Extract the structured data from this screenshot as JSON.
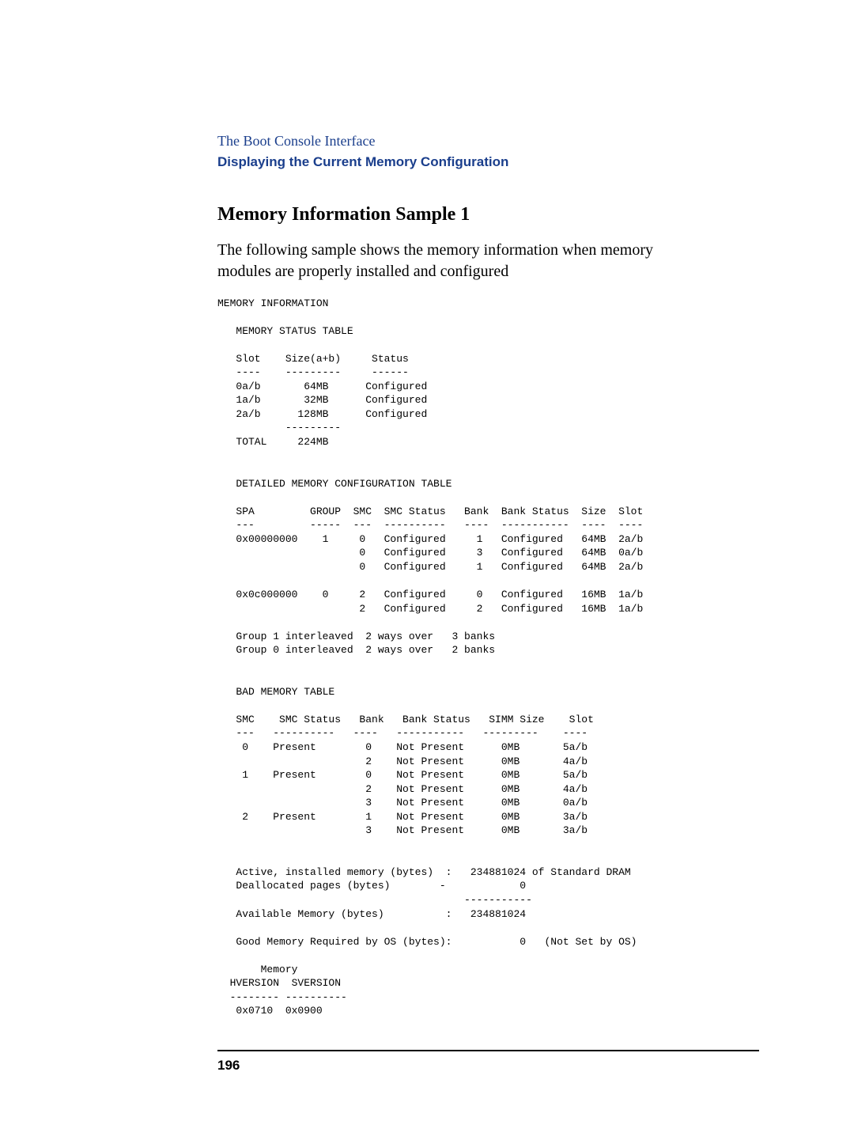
{
  "header": {
    "chapter": "The Boot Console Interface",
    "section": "Displaying the Current Memory Configuration"
  },
  "title": "Memory Information Sample 1",
  "intro": "The following sample shows the memory information when memory modules are properly installed and configured",
  "mono_block": "MEMORY INFORMATION\n\n   MEMORY STATUS TABLE\n\n   Slot    Size(a+b)     Status\n   ----    ---------     ------\n   0a/b       64MB      Configured\n   1a/b       32MB      Configured\n   2a/b      128MB      Configured\n           ---------\n   TOTAL     224MB\n\n\n   DETAILED MEMORY CONFIGURATION TABLE\n\n   SPA         GROUP  SMC  SMC Status   Bank  Bank Status  Size  Slot\n   ---         -----  ---  ----------   ----  -----------  ----  ----\n   0x00000000    1     0   Configured     1   Configured   64MB  2a/b\n                       0   Configured     3   Configured   64MB  0a/b\n                       0   Configured     1   Configured   64MB  2a/b\n\n   0x0c000000    0     2   Configured     0   Configured   16MB  1a/b\n                       2   Configured     2   Configured   16MB  1a/b\n\n   Group 1 interleaved  2 ways over   3 banks\n   Group 0 interleaved  2 ways over   2 banks\n\n\n   BAD MEMORY TABLE\n\n   SMC    SMC Status   Bank   Bank Status   SIMM Size    Slot\n   ---   ----------   ----   -----------   ---------    ----\n    0    Present        0    Not Present      0MB       5a/b\n                        2    Not Present      0MB       4a/b\n    1    Present        0    Not Present      0MB       5a/b\n                        2    Not Present      0MB       4a/b\n                        3    Not Present      0MB       0a/b\n    2    Present        1    Not Present      0MB       3a/b\n                        3    Not Present      0MB       3a/b\n\n\n   Active, installed memory (bytes)  :   234881024 of Standard DRAM\n   Deallocated pages (bytes)        -            0\n                                        -----------\n   Available Memory (bytes)          :   234881024\n\n   Good Memory Required by OS (bytes):           0   (Not Set by OS)\n\n       Memory\n  HVERSION  SVERSION\n  -------- ----------\n   0x0710  0x0900",
  "page_number": "196"
}
